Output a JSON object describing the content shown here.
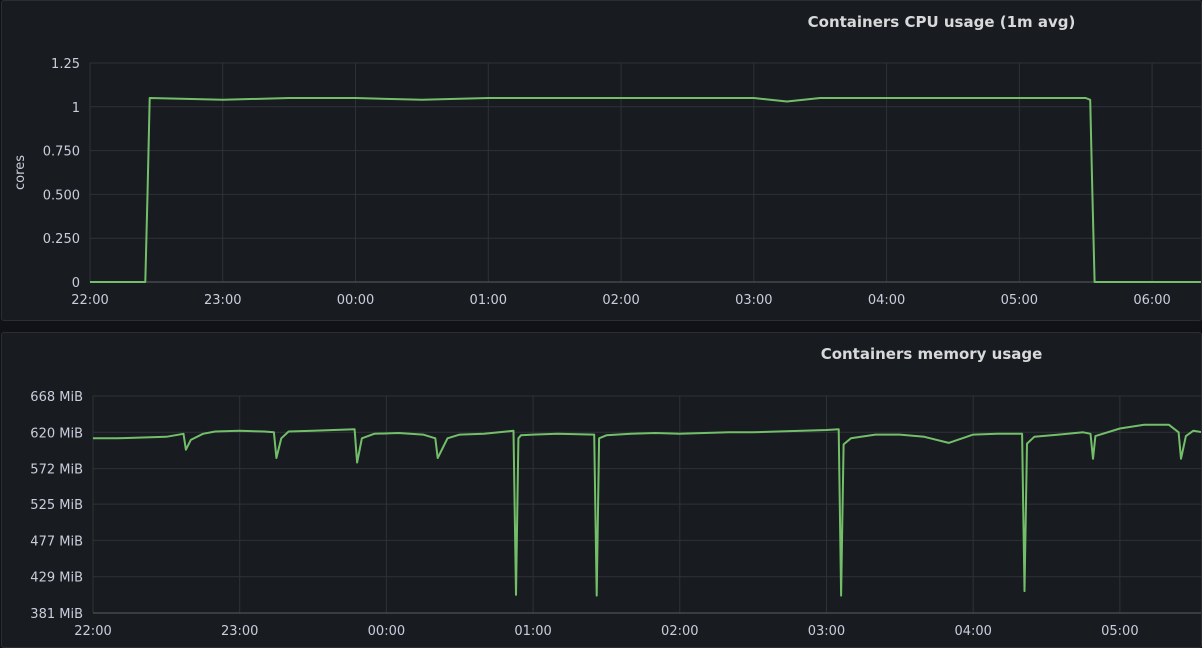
{
  "chart_data": [
    {
      "type": "line",
      "title": "Containers CPU usage (1m avg)",
      "ylabel": "cores",
      "xlabel": "",
      "x_ticks": [
        "22:00",
        "23:00",
        "00:00",
        "01:00",
        "02:00",
        "03:00",
        "04:00",
        "05:00",
        "06:00"
      ],
      "y_ticks": [
        "0",
        "0.250",
        "0.500",
        "0.750",
        "1",
        "1.25"
      ],
      "ylim": [
        0,
        1.25
      ],
      "xlim": [
        "22:00",
        "06:23"
      ],
      "grid": true,
      "color": "#73bf69",
      "series": [
        {
          "x": [
            "22:00",
            "22:25",
            "22:26",
            "22:27",
            "23:00",
            "23:30",
            "00:00",
            "00:30",
            "01:00",
            "01:30",
            "02:00",
            "02:30",
            "03:00",
            "03:15",
            "03:30",
            "04:00",
            "04:30",
            "05:00",
            "05:30",
            "05:32",
            "05:33",
            "05:34",
            "06:00",
            "06:23"
          ],
          "values": [
            0,
            0,
            0.5,
            1.05,
            1.04,
            1.05,
            1.05,
            1.04,
            1.05,
            1.05,
            1.05,
            1.05,
            1.05,
            1.03,
            1.05,
            1.05,
            1.05,
            1.05,
            1.05,
            1.04,
            0.5,
            0,
            0,
            0
          ]
        }
      ]
    },
    {
      "type": "line",
      "title": "Containers memory usage",
      "ylabel": "",
      "xlabel": "",
      "x_ticks": [
        "22:00",
        "23:00",
        "00:00",
        "01:00",
        "02:00",
        "03:00",
        "04:00",
        "05:00"
      ],
      "y_ticks": [
        "381 MiB",
        "429 MiB",
        "477 MiB",
        "525 MiB",
        "572 MiB",
        "620 MiB",
        "668 MiB"
      ],
      "ylim": [
        381,
        668
      ],
      "xlim": [
        "22:00",
        "05:34"
      ],
      "grid": true,
      "color": "#73bf69",
      "series": [
        {
          "x": [
            "22:00",
            "22:10",
            "22:30",
            "22:37",
            "22:38",
            "22:40",
            "22:45",
            "22:50",
            "23:00",
            "23:10",
            "23:14",
            "23:15",
            "23:17",
            "23:20",
            "23:30",
            "23:47",
            "23:48",
            "23:50",
            "23:55",
            "00:05",
            "00:15",
            "00:20",
            "00:21",
            "00:25",
            "00:30",
            "00:40",
            "00:52",
            "00:53",
            "00:54",
            "00:55",
            "01:00",
            "01:10",
            "01:25",
            "01:26",
            "01:27",
            "01:30",
            "01:40",
            "01:50",
            "02:00",
            "02:10",
            "02:20",
            "02:30",
            "02:40",
            "02:50",
            "03:00",
            "03:05",
            "03:06",
            "03:07",
            "03:10",
            "03:20",
            "03:30",
            "03:40",
            "03:50",
            "04:00",
            "04:10",
            "04:20",
            "04:21",
            "04:22",
            "04:25",
            "04:35",
            "04:45",
            "04:48",
            "04:49",
            "04:50",
            "05:00",
            "05:10",
            "05:20",
            "05:24",
            "05:25",
            "05:27",
            "05:30",
            "05:34"
          ],
          "values": [
            612,
            612,
            614,
            618,
            597,
            610,
            618,
            621,
            622,
            621,
            620,
            586,
            612,
            621,
            622,
            624,
            580,
            612,
            618,
            619,
            617,
            612,
            586,
            612,
            617,
            618,
            622,
            405,
            612,
            616,
            617,
            618,
            617,
            404,
            612,
            616,
            618,
            619,
            618,
            619,
            620,
            620,
            621,
            622,
            623,
            624,
            404,
            604,
            612,
            617,
            617,
            614,
            606,
            617,
            618,
            618,
            410,
            605,
            614,
            617,
            620,
            618,
            585,
            615,
            625,
            630,
            630,
            620,
            585,
            615,
            622,
            620
          ]
        }
      ]
    }
  ]
}
